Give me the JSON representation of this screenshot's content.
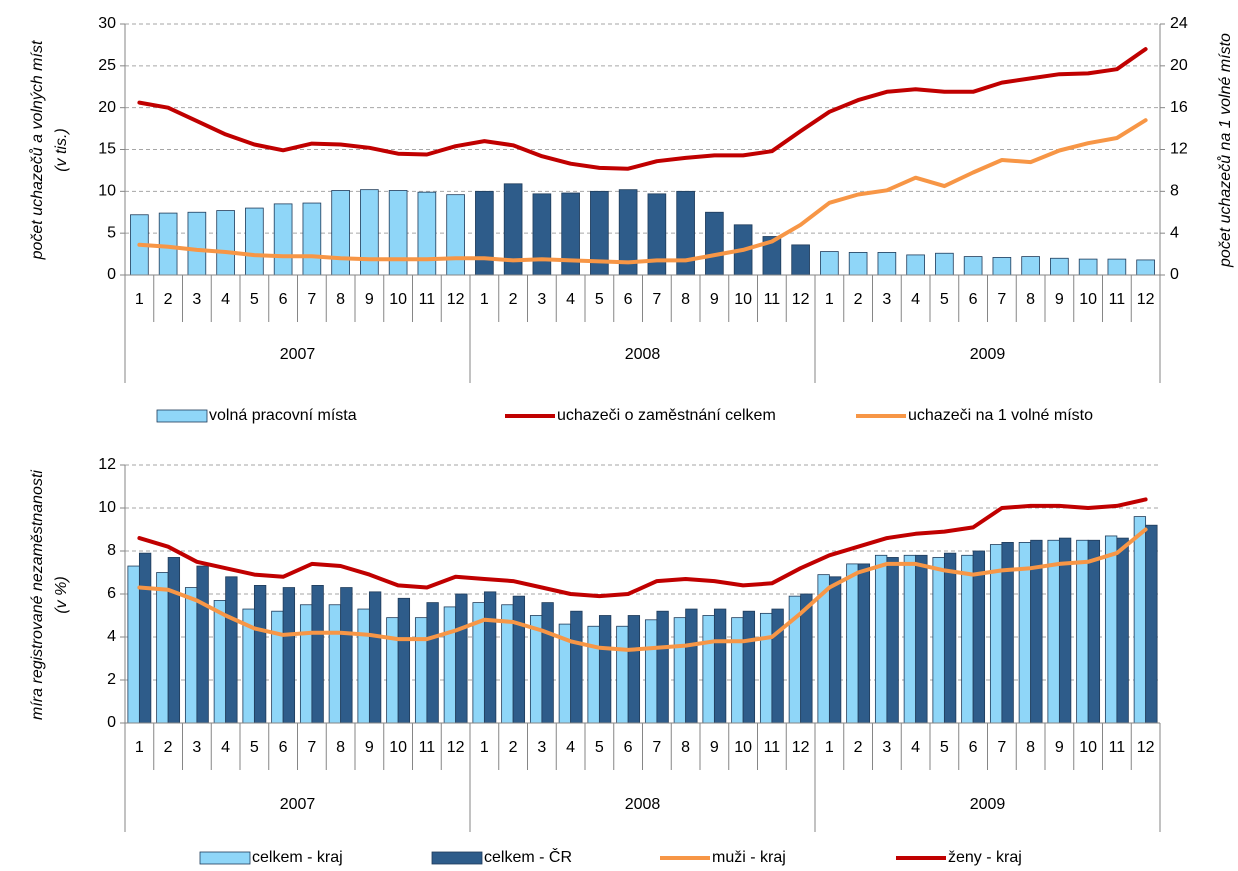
{
  "chart_data": [
    {
      "type": "bar",
      "ylabel": [
        "počet uchazečů a volných míst",
        "(v tis.)"
      ],
      "y2label": "počet uchazečů na 1 volné místo",
      "categories": [
        1,
        2,
        3,
        4,
        5,
        6,
        7,
        8,
        9,
        10,
        11,
        12,
        1,
        2,
        3,
        4,
        5,
        6,
        7,
        8,
        9,
        10,
        11,
        12,
        1,
        2,
        3,
        4,
        5,
        6,
        7,
        8,
        9,
        10,
        11,
        12
      ],
      "groups": [
        "2007",
        "2008",
        "2009"
      ],
      "group_colors": [
        "#8fd6f8",
        "#2e5c8a",
        "#8fd6f8"
      ],
      "ylim": [
        0,
        30
      ],
      "yticks": [
        0,
        5,
        10,
        15,
        20,
        25,
        30
      ],
      "y2lim": [
        0,
        24
      ],
      "y2ticks": [
        0,
        4,
        8,
        12,
        16,
        20,
        24
      ],
      "grid": true,
      "series": [
        {
          "name": "volná pracovní místa",
          "type": "bar",
          "color": "#8fd6f8",
          "values": [
            7.2,
            7.4,
            7.5,
            7.7,
            8.0,
            8.5,
            8.6,
            10.1,
            10.2,
            10.1,
            9.9,
            9.6,
            10.0,
            10.9,
            9.7,
            9.8,
            10.0,
            10.2,
            9.7,
            10.0,
            7.5,
            6.0,
            4.6,
            3.6,
            2.8,
            2.7,
            2.7,
            2.4,
            2.6,
            2.2,
            2.1,
            2.2,
            2.0,
            1.9,
            1.9,
            1.8
          ]
        },
        {
          "name": "uchazeči o zaměstnání celkem",
          "type": "line",
          "color": "#c00000",
          "values": [
            20.6,
            20.0,
            18.4,
            16.8,
            15.6,
            14.9,
            15.7,
            15.6,
            15.2,
            14.5,
            14.4,
            15.4,
            16.0,
            15.5,
            14.2,
            13.3,
            12.8,
            12.7,
            13.6,
            14.0,
            14.3,
            14.3,
            14.8,
            17.2,
            19.5,
            20.9,
            21.9,
            22.2,
            21.9,
            21.9,
            23.0,
            23.5,
            24.0,
            24.1,
            24.6,
            27.0
          ]
        },
        {
          "name": "uchazeči na 1 volné místo",
          "type": "line",
          "color": "#f79646",
          "axis": "y2",
          "values": [
            2.9,
            2.7,
            2.4,
            2.2,
            1.9,
            1.8,
            1.8,
            1.6,
            1.5,
            1.5,
            1.5,
            1.6,
            1.6,
            1.4,
            1.5,
            1.4,
            1.3,
            1.2,
            1.4,
            1.4,
            1.9,
            2.4,
            3.2,
            4.8,
            6.9,
            7.7,
            8.1,
            9.3,
            8.5,
            9.8,
            11.0,
            10.8,
            11.9,
            12.6,
            13.1,
            14.8
          ]
        }
      ]
    },
    {
      "type": "bar",
      "ylabel": [
        "míra registrované nezaměstnanosti",
        "(v %)"
      ],
      "categories": [
        1,
        2,
        3,
        4,
        5,
        6,
        7,
        8,
        9,
        10,
        11,
        12,
        1,
        2,
        3,
        4,
        5,
        6,
        7,
        8,
        9,
        10,
        11,
        12,
        1,
        2,
        3,
        4,
        5,
        6,
        7,
        8,
        9,
        10,
        11,
        12
      ],
      "groups": [
        "2007",
        "2008",
        "2009"
      ],
      "ylim": [
        0,
        12
      ],
      "yticks": [
        0,
        2,
        4,
        6,
        8,
        10,
        12
      ],
      "grid": true,
      "series": [
        {
          "name": "celkem - kraj",
          "type": "bar",
          "color": "#8fd6f8",
          "values": [
            7.3,
            7.0,
            6.3,
            5.7,
            5.3,
            5.2,
            5.5,
            5.5,
            5.3,
            4.9,
            4.9,
            5.4,
            5.6,
            5.5,
            5.0,
            4.6,
            4.5,
            4.5,
            4.8,
            4.9,
            5.0,
            4.9,
            5.1,
            5.9,
            6.9,
            7.4,
            7.8,
            7.8,
            7.7,
            7.8,
            8.3,
            8.4,
            8.5,
            8.5,
            8.7,
            9.6
          ]
        },
        {
          "name": "celkem - ČR",
          "type": "bar",
          "color": "#2e5c8a",
          "values": [
            7.9,
            7.7,
            7.3,
            6.8,
            6.4,
            6.3,
            6.4,
            6.3,
            6.1,
            5.8,
            5.6,
            6.0,
            6.1,
            5.9,
            5.6,
            5.2,
            5.0,
            5.0,
            5.2,
            5.3,
            5.3,
            5.2,
            5.3,
            6.0,
            6.8,
            7.4,
            7.7,
            7.8,
            7.9,
            8.0,
            8.4,
            8.5,
            8.6,
            8.5,
            8.6,
            9.2
          ]
        },
        {
          "name": "muži - kraj",
          "type": "line",
          "color": "#f79646",
          "values": [
            6.3,
            6.2,
            5.7,
            5.0,
            4.4,
            4.1,
            4.2,
            4.2,
            4.1,
            3.9,
            3.9,
            4.3,
            4.8,
            4.7,
            4.3,
            3.8,
            3.5,
            3.4,
            3.5,
            3.6,
            3.8,
            3.8,
            4.0,
            5.1,
            6.3,
            7.0,
            7.4,
            7.4,
            7.1,
            6.9,
            7.1,
            7.2,
            7.4,
            7.5,
            7.9,
            9.0
          ]
        },
        {
          "name": "ženy - kraj",
          "type": "line",
          "color": "#c00000",
          "values": [
            8.6,
            8.2,
            7.5,
            7.2,
            6.9,
            6.8,
            7.4,
            7.3,
            6.9,
            6.4,
            6.3,
            6.8,
            6.7,
            6.6,
            6.3,
            6.0,
            5.9,
            6.0,
            6.6,
            6.7,
            6.6,
            6.4,
            6.5,
            7.2,
            7.8,
            8.2,
            8.6,
            8.8,
            8.9,
            9.1,
            10.0,
            10.1,
            10.1,
            10.0,
            10.1,
            10.4
          ]
        }
      ]
    }
  ]
}
